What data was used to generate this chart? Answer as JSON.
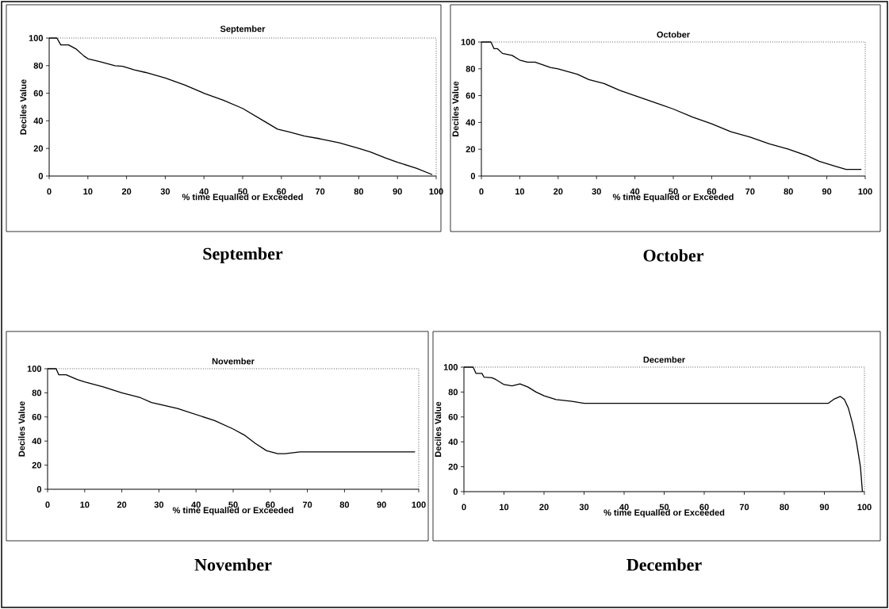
{
  "chart_data": [
    {
      "type": "line",
      "title": "September",
      "xlabel": "% time Equalled or Exceeded",
      "ylabel": "Deciles Value",
      "annotations": [
        "September"
      ],
      "color": "#000000",
      "xlim": [
        0,
        100
      ],
      "ylim": [
        0,
        100
      ],
      "xticks": [
        0,
        10,
        20,
        30,
        40,
        50,
        60,
        70,
        80,
        90,
        100
      ],
      "yticks": [
        0,
        20,
        40,
        60,
        80,
        100
      ],
      "x": [
        0,
        2,
        3,
        5,
        7,
        9,
        10,
        13,
        17,
        19,
        22,
        25,
        30,
        35,
        40,
        45,
        50,
        53,
        56,
        59,
        62,
        66,
        70,
        75,
        80,
        83,
        87,
        90,
        95,
        99
      ],
      "values": [
        100,
        100,
        95,
        95,
        92,
        87,
        85,
        83,
        80,
        79.5,
        77,
        75,
        71,
        66,
        60,
        55,
        49,
        44,
        39,
        34,
        32,
        29,
        27,
        24,
        20,
        17.5,
        13,
        10,
        5.5,
        1
      ]
    },
    {
      "type": "line",
      "title": "October",
      "xlabel": "% time Equalled or Exceeded",
      "ylabel": "Deciles Value",
      "annotations": [
        "October"
      ],
      "color": "#000000",
      "xlim": [
        0,
        100
      ],
      "ylim": [
        0,
        100
      ],
      "xticks": [
        0,
        10,
        20,
        30,
        40,
        50,
        60,
        70,
        80,
        90,
        100
      ],
      "yticks": [
        0,
        20,
        40,
        60,
        80,
        100
      ],
      "x": [
        0,
        2.5,
        3.3,
        4.2,
        5.5,
        8,
        10,
        12,
        14,
        18,
        20,
        25,
        28,
        32,
        36,
        40,
        47,
        50,
        55,
        60,
        65,
        70,
        75,
        80,
        85,
        88,
        92,
        95,
        99
      ],
      "values": [
        100,
        100,
        95,
        95,
        91.5,
        90,
        86.5,
        85,
        85,
        81,
        80,
        76,
        72,
        69,
        64,
        60,
        53,
        50,
        44,
        39,
        33,
        29,
        24,
        20,
        15,
        11,
        7.5,
        5,
        5
      ]
    },
    {
      "type": "line",
      "title": "November",
      "xlabel": "% time Equalled or Exceeded",
      "ylabel": "Deciles Value",
      "annotations": [
        "November"
      ],
      "color": "#000000",
      "xlim": [
        0,
        100
      ],
      "ylim": [
        0,
        100
      ],
      "xticks": [
        0,
        10,
        20,
        30,
        40,
        50,
        60,
        70,
        80,
        90,
        100
      ],
      "yticks": [
        0,
        20,
        40,
        60,
        80,
        100
      ],
      "x": [
        0,
        2.3,
        3,
        5,
        8,
        10,
        15,
        19,
        20,
        25,
        28,
        35,
        40,
        45,
        50,
        53,
        56,
        59,
        62,
        64,
        68,
        80,
        99
      ],
      "values": [
        100,
        100,
        95,
        95,
        91,
        89,
        85,
        81,
        80,
        76,
        72,
        67,
        62,
        57,
        50,
        45,
        38,
        32,
        29.5,
        29.5,
        31,
        31,
        31
      ]
    },
    {
      "type": "line",
      "title": "December",
      "xlabel": "% time Equalled or Exceeded",
      "ylabel": "Deciles Value",
      "annotations": [
        "December"
      ],
      "color": "#000000",
      "xlim": [
        0,
        100
      ],
      "ylim": [
        0,
        100
      ],
      "xticks": [
        0,
        10,
        20,
        30,
        40,
        50,
        60,
        70,
        80,
        90,
        100
      ],
      "yticks": [
        0,
        20,
        40,
        60,
        80,
        100
      ],
      "x": [
        0,
        2.3,
        3,
        4.5,
        5,
        7,
        8,
        10,
        12,
        14,
        16,
        18,
        20,
        23,
        27,
        30,
        50,
        91,
        92.5,
        94,
        95,
        96,
        97,
        98,
        99,
        99.5
      ],
      "values": [
        100,
        100,
        95,
        95,
        92,
        91.5,
        90,
        86,
        85,
        86.5,
        84,
        80,
        77,
        74,
        72.5,
        71,
        71,
        71,
        74.5,
        76.5,
        74,
        67,
        55,
        40,
        20,
        0
      ]
    }
  ]
}
